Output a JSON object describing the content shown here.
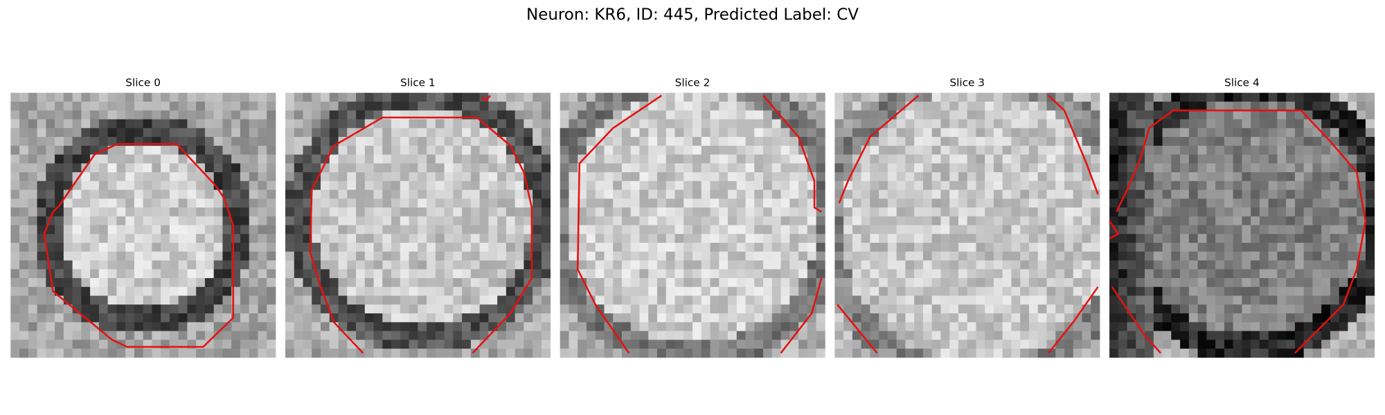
{
  "figure": {
    "title": "Neuron: KR6, ID: 445, Predicted Label: CV",
    "panels": [
      {
        "title": "Slice 0"
      },
      {
        "title": "Slice 1"
      },
      {
        "title": "Slice 2"
      },
      {
        "title": "Slice 3"
      },
      {
        "title": "Slice 4"
      }
    ]
  }
}
